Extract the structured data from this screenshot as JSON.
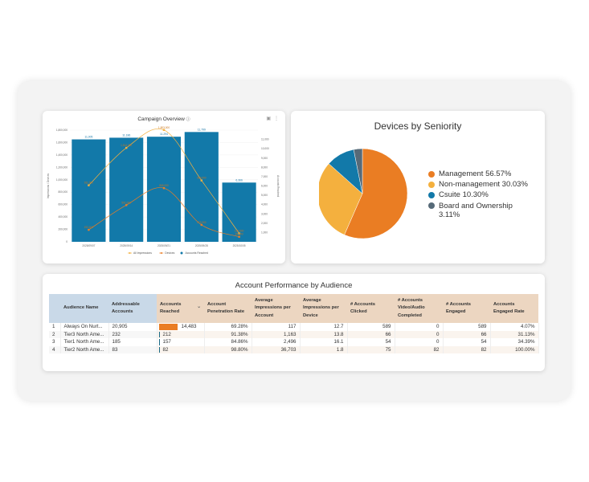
{
  "campaign": {
    "title": "Campaign Overview",
    "info_icon": "info-icon",
    "icons": [
      "filter-icon",
      "more-vert-icon"
    ],
    "left_axis_label": "Impressions / Devices",
    "right_axis_label": "Accounts Reached"
  },
  "chart_data": [
    {
      "type": "bar",
      "title": "Campaign Overview",
      "categories": [
        "2025/09/07",
        "2025/09/14",
        "2025/09/21",
        "2025/09/28",
        "2025/10/05"
      ],
      "xlabel": "",
      "ylabel": "Impressions / Devices",
      "y2label": "Accounts Reached",
      "ylim": [
        0,
        1800000
      ],
      "yticks": [
        "0",
        "200,000",
        "400,000",
        "600,000",
        "800,000",
        "1,000,000",
        "1,200,000",
        "1,400,000",
        "1,600,000",
        "1,800,000"
      ],
      "y2lim": [
        0,
        12000
      ],
      "y2ticks": [
        "1,000",
        "2,000",
        "3,000",
        "4,000",
        "5,000",
        "6,000",
        "7,000",
        "8,000",
        "9,000",
        "10,000",
        "11,000"
      ],
      "grid": true,
      "legend": "bottom",
      "series": [
        {
          "name": "All Impressions",
          "type": "line",
          "axis": "left",
          "color": "#f4b03e",
          "values": [
            911000,
            1514000,
            1803000,
            989000,
            136000
          ],
          "labels": [
            "911,000",
            "1,514,000",
            "1,803,000",
            "989,000",
            "136,000"
          ]
        },
        {
          "name": "Devices",
          "type": "line",
          "axis": "left",
          "color": "#ea7d23",
          "values": [
            193000,
            591000,
            865000,
            273000,
            81000
          ],
          "labels": [
            "193,000",
            "591,000",
            "865,000",
            "273,000",
            "81,000"
          ]
        },
        {
          "name": "Accounts Reached",
          "type": "bar",
          "axis": "right",
          "color": "#1279a9",
          "values": [
            11005,
            11186,
            11294,
            11799,
            6366
          ],
          "labels": [
            "11,005",
            "11,186",
            "11,294",
            "11,799",
            "6,366"
          ]
        }
      ]
    },
    {
      "type": "pie",
      "title": "Devices by Seniority",
      "legend": "right",
      "slices": [
        {
          "label": "Management",
          "value": 56.57,
          "color": "#ea7d23"
        },
        {
          "label": "Non-management",
          "value": 30.03,
          "color": "#f4b03e"
        },
        {
          "label": "Csuite",
          "value": 10.3,
          "color": "#1279a9"
        },
        {
          "label": "Board and Ownership",
          "value": 3.11,
          "color": "#566a78"
        }
      ]
    }
  ],
  "seniority": {
    "title": "Devices by Seniority",
    "legend": [
      {
        "text": "Management 56.57%",
        "color": "#ea7d23"
      },
      {
        "text": "Non-management 30.03%",
        "color": "#f4b03e"
      },
      {
        "text": "Csuite 10.30%",
        "color": "#1279a9"
      },
      {
        "text": "Board and Ownership 3.11%",
        "color": "#566a78"
      }
    ]
  },
  "table": {
    "title": "Account Performance by Audience",
    "headers": [
      "",
      "Audience Name",
      "Addressable Accounts",
      "Accounts Reached",
      "Account Penetration Rate",
      "Average Impressions per Account",
      "Average Impressions per Device",
      "# Accounts Clicked",
      "# Accounts Video/Audio Completed",
      "# Accounts Engaged",
      "Accounts Engaged Rate"
    ],
    "sort_icon": "chevron-down-icon",
    "reach_bar_colors": {
      "max": "#ea7d23",
      "other": "#1a6a86"
    },
    "rows": [
      {
        "idx": "1",
        "name": "Always On Nurt...",
        "addressable": "20,905",
        "reached": "14,483",
        "reached_value": 14483,
        "penetration": "69.28%",
        "avg_imp_account": "117",
        "avg_imp_device": "12.7",
        "clicked": "589",
        "video": "0",
        "engaged": "589",
        "engaged_rate": "4.07%"
      },
      {
        "idx": "2",
        "name": "Tier3 North Ame...",
        "addressable": "232",
        "reached": "212",
        "reached_value": 212,
        "penetration": "91.38%",
        "avg_imp_account": "1,163",
        "avg_imp_device": "13.8",
        "clicked": "66",
        "video": "0",
        "engaged": "66",
        "engaged_rate": "31.13%"
      },
      {
        "idx": "3",
        "name": "Tier1 North Ame...",
        "addressable": "185",
        "reached": "157",
        "reached_value": 157,
        "penetration": "84.86%",
        "avg_imp_account": "2,496",
        "avg_imp_device": "16.1",
        "clicked": "54",
        "video": "0",
        "engaged": "54",
        "engaged_rate": "34.39%"
      },
      {
        "idx": "4",
        "name": "Tier2 North Ame...",
        "addressable": "83",
        "reached": "82",
        "reached_value": 82,
        "penetration": "98.80%",
        "avg_imp_account": "36,703",
        "avg_imp_device": "1.8",
        "clicked": "75",
        "video": "82",
        "engaged": "82",
        "engaged_rate": "100.00%"
      }
    ]
  }
}
